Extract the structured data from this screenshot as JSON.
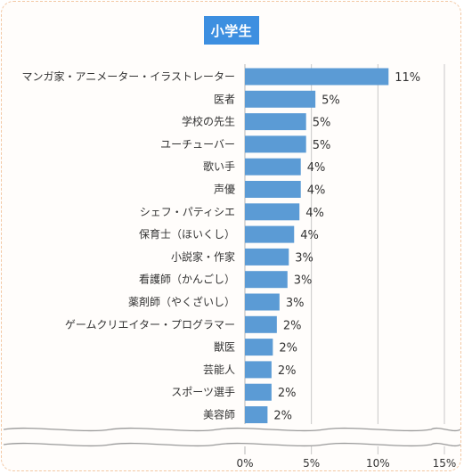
{
  "chart_data": {
    "type": "bar",
    "orientation": "horizontal",
    "title": "小学生",
    "categories": [
      "マンガ家・アニメーター・イラストレーター",
      "医者",
      "学校の先生",
      "ユーチューバー",
      "歌い手",
      "声優",
      "シェフ・パティシエ",
      "保育士（ほいくし）",
      "小説家・作家",
      "看護師（かんごし）",
      "薬剤師（やくざいし）",
      "ゲームクリエイター・プログラマー",
      "獣医",
      "芸能人",
      "スポーツ選手",
      "美容師"
    ],
    "values": [
      10.8,
      5.3,
      4.6,
      4.6,
      4.2,
      4.2,
      4.1,
      3.7,
      3.3,
      3.2,
      2.6,
      2.4,
      2.1,
      2.0,
      2.0,
      1.7
    ],
    "value_labels": [
      "11%",
      "5%",
      "5%",
      "5%",
      "4%",
      "4%",
      "4%",
      "4%",
      "3%",
      "3%",
      "3%",
      "2%",
      "2%",
      "2%",
      "2%",
      "2%"
    ],
    "x_ticks": [
      0,
      5,
      10,
      15
    ],
    "x_tick_labels": [
      "0%",
      "5%",
      "10%",
      "15%"
    ],
    "xlim": [
      0,
      15
    ],
    "grid": true,
    "axis_break": true,
    "bar_color": "#5b9bd5",
    "grid_color": "#c8c8c8"
  },
  "colors": {
    "title_badge": "#3d8fe0",
    "frame_border": "#f3c8a4"
  }
}
